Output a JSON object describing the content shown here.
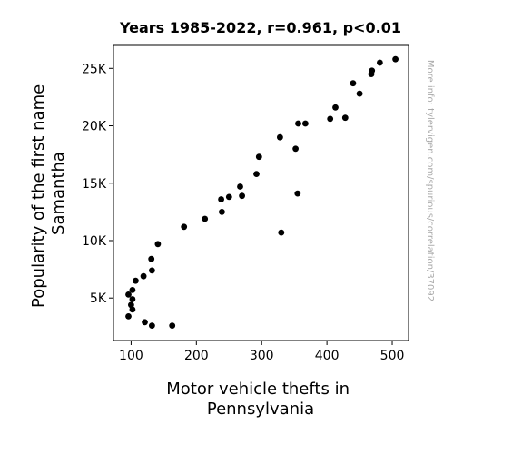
{
  "chart_data": {
    "type": "scatter",
    "title": "Years 1985-2022, r=0.961, p<0.01",
    "xlabel": [
      "Motor vehicle thefts in",
      "Pennsylvania"
    ],
    "ylabel": [
      "Popularity of the first name",
      "Samantha"
    ],
    "watermark": "More info: tylervigen.com/spurious/correlation/37092",
    "xlim": [
      73,
      525
    ],
    "ylim": [
      1300,
      27000
    ],
    "xticks": [
      100,
      200,
      300,
      400,
      500
    ],
    "xtick_labels": [
      "100",
      "200",
      "300",
      "400",
      "500"
    ],
    "yticks": [
      5000,
      10000,
      15000,
      20000,
      25000
    ],
    "ytick_labels": [
      "5K",
      "10K",
      "15K",
      "20K",
      "25K"
    ],
    "grid": false,
    "marker_color": "#000000",
    "points": [
      [
        505,
        25800
      ],
      [
        481,
        25500
      ],
      [
        469,
        24800
      ],
      [
        468,
        24500
      ],
      [
        440,
        23700
      ],
      [
        450,
        22800
      ],
      [
        413,
        21600
      ],
      [
        428,
        20700
      ],
      [
        405,
        20600
      ],
      [
        356,
        20200
      ],
      [
        367,
        20200
      ],
      [
        328,
        19000
      ],
      [
        352,
        18000
      ],
      [
        296,
        17300
      ],
      [
        292,
        15800
      ],
      [
        267,
        14700
      ],
      [
        238,
        13600
      ],
      [
        250,
        13800
      ],
      [
        270,
        13900
      ],
      [
        355,
        14100
      ],
      [
        239,
        12500
      ],
      [
        213,
        11900
      ],
      [
        181,
        11200
      ],
      [
        330,
        10700
      ],
      [
        141,
        9700
      ],
      [
        131,
        8400
      ],
      [
        132,
        7400
      ],
      [
        119,
        6900
      ],
      [
        107,
        6500
      ],
      [
        102,
        5700
      ],
      [
        96,
        5300
      ],
      [
        102,
        4900
      ],
      [
        100,
        4400
      ],
      [
        102,
        4000
      ],
      [
        96,
        3400
      ],
      [
        121,
        2900
      ],
      [
        132,
        2600
      ],
      [
        163,
        2600
      ]
    ]
  }
}
